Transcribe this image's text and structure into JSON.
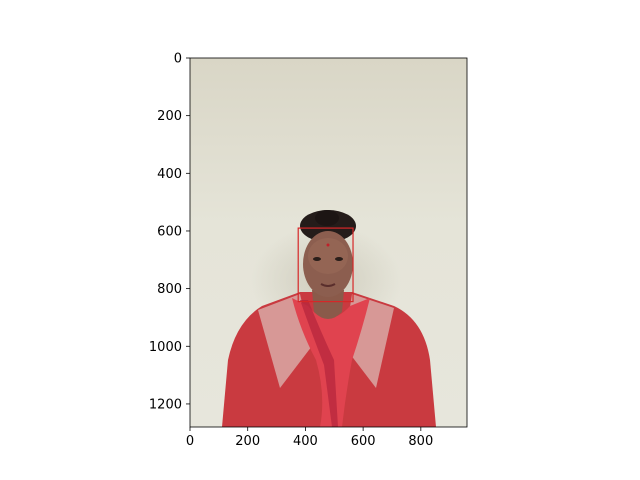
{
  "chart_data": {
    "type": "image",
    "title": "",
    "xlabel": "",
    "ylabel": "",
    "xlim": [
      0,
      960
    ],
    "ylim": [
      1280,
      0
    ],
    "x_ticks": [
      {
        "value": 0,
        "label": "0"
      },
      {
        "value": 200,
        "label": "200"
      },
      {
        "value": 400,
        "label": "400"
      },
      {
        "value": 600,
        "label": "600"
      },
      {
        "value": 800,
        "label": "800"
      }
    ],
    "y_ticks": [
      {
        "value": 0,
        "label": "0"
      },
      {
        "value": 200,
        "label": "200"
      },
      {
        "value": 400,
        "label": "400"
      },
      {
        "value": 600,
        "label": "600"
      },
      {
        "value": 800,
        "label": "800"
      },
      {
        "value": 1000,
        "label": "1000"
      },
      {
        "value": 1200,
        "label": "1200"
      }
    ],
    "annotations": [
      {
        "kind": "rectangle",
        "x0": 375,
        "y0": 590,
        "x1": 565,
        "y1": 845,
        "color": "#d62728"
      }
    ],
    "grid": false
  },
  "image": {
    "subject": "woman-portrait",
    "wall_color": "#e3e2d6",
    "clothing_color": "#c8383f"
  }
}
